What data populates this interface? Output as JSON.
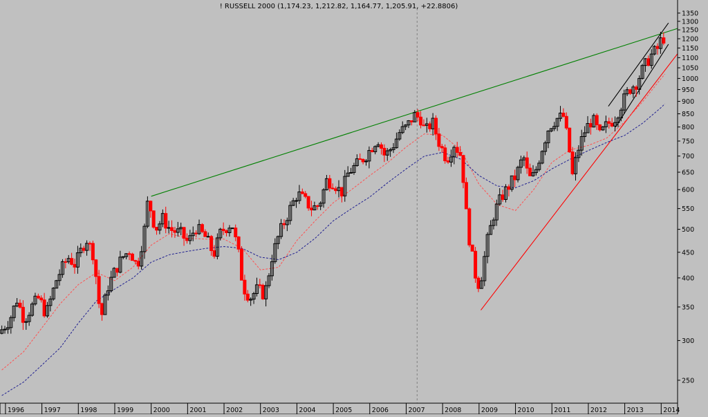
{
  "chart_data": {
    "type": "candlestick",
    "title": "! RUSSELL 2000 (1,174.23, 1,212.82, 1,164.77, 1,205.91, +22.8806)",
    "scale": "log",
    "ylim": [
      225,
      1380
    ],
    "xlim": [
      1995.85,
      2014.45
    ],
    "grid": false,
    "y_ticks": [
      1350,
      1300,
      1250,
      1200,
      1150,
      1100,
      1050,
      1000,
      950,
      900,
      850,
      800,
      750,
      700,
      650,
      600,
      550,
      500,
      450,
      400,
      350,
      300,
      250
    ],
    "x_ticks": [
      {
        "label": "1996",
        "x": 1996.0
      },
      {
        "label": "1997",
        "x": 1997.0
      },
      {
        "label": "1998",
        "x": 1998.0
      },
      {
        "label": "1999",
        "x": 1999.0
      },
      {
        "label": "2000",
        "x": 2000.0
      },
      {
        "label": "2001",
        "x": 2001.0
      },
      {
        "label": "2002",
        "x": 2002.0
      },
      {
        "label": "2003",
        "x": 2003.0
      },
      {
        "label": "2004",
        "x": 2004.0
      },
      {
        "label": "2005",
        "x": 2005.0
      },
      {
        "label": "2006",
        "x": 2006.0
      },
      {
        "label": "2007",
        "x": 2007.0
      },
      {
        "label": "2008",
        "x": 2008.0
      },
      {
        "label": "2009",
        "x": 2009.0
      },
      {
        "label": "2010",
        "x": 2010.0
      },
      {
        "label": "2011",
        "x": 2011.0
      },
      {
        "label": "2012",
        "x": 2012.0
      },
      {
        "label": "2013",
        "x": 2013.0
      },
      {
        "label": "2014",
        "x": 2014.0
      }
    ],
    "series": [
      {
        "kind": "price",
        "color_up": "#000000",
        "color_down": "#ff0000",
        "points": [
          [
            1995.9,
            310
          ],
          [
            1996.2,
            330
          ],
          [
            1996.4,
            362
          ],
          [
            1996.6,
            330
          ],
          [
            1996.8,
            350
          ],
          [
            1997.0,
            365
          ],
          [
            1997.2,
            338
          ],
          [
            1997.5,
            400
          ],
          [
            1997.8,
            440
          ],
          [
            1998.0,
            425
          ],
          [
            1998.3,
            480
          ],
          [
            1998.5,
            445
          ],
          [
            1998.6,
            385
          ],
          [
            1998.7,
            330
          ],
          [
            1998.9,
            385
          ],
          [
            1999.1,
            415
          ],
          [
            1999.3,
            440
          ],
          [
            1999.5,
            455
          ],
          [
            1999.7,
            420
          ],
          [
            1999.9,
            500
          ],
          [
            2000.0,
            575
          ],
          [
            2000.2,
            500
          ],
          [
            2000.4,
            525
          ],
          [
            2000.6,
            500
          ],
          [
            2000.9,
            490
          ],
          [
            2001.1,
            470
          ],
          [
            2001.3,
            505
          ],
          [
            2001.6,
            480
          ],
          [
            2001.8,
            445
          ],
          [
            2002.0,
            495
          ],
          [
            2002.3,
            515
          ],
          [
            2002.5,
            440
          ],
          [
            2002.6,
            385
          ],
          [
            2002.8,
            365
          ],
          [
            2003.0,
            380
          ],
          [
            2003.2,
            370
          ],
          [
            2003.4,
            440
          ],
          [
            2003.6,
            490
          ],
          [
            2003.9,
            550
          ],
          [
            2004.1,
            590
          ],
          [
            2004.3,
            570
          ],
          [
            2004.5,
            550
          ],
          [
            2004.7,
            560
          ],
          [
            2004.9,
            625
          ],
          [
            2005.1,
            620
          ],
          [
            2005.3,
            590
          ],
          [
            2005.5,
            650
          ],
          [
            2005.8,
            680
          ],
          [
            2006.0,
            705
          ],
          [
            2006.3,
            760
          ],
          [
            2006.5,
            700
          ],
          [
            2006.7,
            730
          ],
          [
            2006.9,
            780
          ],
          [
            2007.1,
            800
          ],
          [
            2007.3,
            845
          ],
          [
            2007.5,
            830
          ],
          [
            2007.6,
            780
          ],
          [
            2007.8,
            820
          ],
          [
            2008.0,
            740
          ],
          [
            2008.2,
            690
          ],
          [
            2008.4,
            740
          ],
          [
            2008.6,
            700
          ],
          [
            2008.75,
            520
          ],
          [
            2008.85,
            460
          ],
          [
            2009.0,
            400
          ],
          [
            2009.1,
            385
          ],
          [
            2009.3,
            470
          ],
          [
            2009.5,
            540
          ],
          [
            2009.7,
            580
          ],
          [
            2009.9,
            610
          ],
          [
            2010.1,
            640
          ],
          [
            2010.3,
            700
          ],
          [
            2010.45,
            630
          ],
          [
            2010.6,
            640
          ],
          [
            2010.8,
            720
          ],
          [
            2011.0,
            800
          ],
          [
            2011.2,
            830
          ],
          [
            2011.4,
            840
          ],
          [
            2011.55,
            730
          ],
          [
            2011.65,
            640
          ],
          [
            2011.8,
            720
          ],
          [
            2012.0,
            790
          ],
          [
            2012.2,
            830
          ],
          [
            2012.4,
            770
          ],
          [
            2012.6,
            810
          ],
          [
            2012.8,
            830
          ],
          [
            2013.0,
            890
          ],
          [
            2013.2,
            950
          ],
          [
            2013.4,
            980
          ],
          [
            2013.6,
            1050
          ],
          [
            2013.8,
            1110
          ],
          [
            2014.0,
            1150
          ],
          [
            2014.1,
            1205
          ]
        ]
      },
      {
        "kind": "moving-average",
        "color": "#ff5050",
        "style": "dashed",
        "points": [
          [
            1995.9,
            262
          ],
          [
            1996.5,
            285
          ],
          [
            1997.0,
            318
          ],
          [
            1997.5,
            355
          ],
          [
            1998.0,
            388
          ],
          [
            1998.5,
            410
          ],
          [
            1999.0,
            395
          ],
          [
            1999.5,
            420
          ],
          [
            2000.0,
            465
          ],
          [
            2000.5,
            490
          ],
          [
            2001.0,
            480
          ],
          [
            2001.5,
            478
          ],
          [
            2002.0,
            478
          ],
          [
            2002.5,
            458
          ],
          [
            2003.0,
            415
          ],
          [
            2003.5,
            420
          ],
          [
            2004.0,
            475
          ],
          [
            2004.5,
            520
          ],
          [
            2005.0,
            565
          ],
          [
            2005.5,
            600
          ],
          [
            2006.0,
            640
          ],
          [
            2006.5,
            680
          ],
          [
            2007.0,
            730
          ],
          [
            2007.5,
            775
          ],
          [
            2008.0,
            770
          ],
          [
            2008.5,
            720
          ],
          [
            2009.0,
            615
          ],
          [
            2009.5,
            560
          ],
          [
            2010.0,
            545
          ],
          [
            2010.5,
            600
          ],
          [
            2011.0,
            680
          ],
          [
            2011.5,
            720
          ],
          [
            2012.0,
            735
          ],
          [
            2012.5,
            760
          ],
          [
            2013.0,
            820
          ],
          [
            2013.5,
            900
          ],
          [
            2014.0,
            1000
          ],
          [
            2014.1,
            1020
          ]
        ]
      },
      {
        "kind": "moving-average",
        "color": "#202090",
        "style": "dashed",
        "points": [
          [
            1995.9,
            233
          ],
          [
            1996.5,
            248
          ],
          [
            1997.0,
            268
          ],
          [
            1997.5,
            290
          ],
          [
            1998.0,
            325
          ],
          [
            1998.5,
            360
          ],
          [
            1999.0,
            380
          ],
          [
            1999.5,
            400
          ],
          [
            2000.0,
            430
          ],
          [
            2000.5,
            445
          ],
          [
            2001.0,
            452
          ],
          [
            2001.5,
            458
          ],
          [
            2002.0,
            462
          ],
          [
            2002.5,
            458
          ],
          [
            2003.0,
            440
          ],
          [
            2003.5,
            435
          ],
          [
            2004.0,
            450
          ],
          [
            2004.5,
            480
          ],
          [
            2005.0,
            520
          ],
          [
            2005.5,
            550
          ],
          [
            2006.0,
            580
          ],
          [
            2006.5,
            620
          ],
          [
            2007.0,
            660
          ],
          [
            2007.5,
            700
          ],
          [
            2008.0,
            712
          ],
          [
            2008.5,
            690
          ],
          [
            2009.0,
            640
          ],
          [
            2009.5,
            610
          ],
          [
            2010.0,
            605
          ],
          [
            2010.5,
            625
          ],
          [
            2011.0,
            660
          ],
          [
            2011.5,
            690
          ],
          [
            2012.0,
            718
          ],
          [
            2012.5,
            745
          ],
          [
            2013.0,
            770
          ],
          [
            2013.5,
            815
          ],
          [
            2014.0,
            875
          ],
          [
            2014.1,
            890
          ]
        ]
      }
    ],
    "annotations": [
      {
        "kind": "trendline",
        "color": "#008000",
        "from": [
          2000.0,
          582
        ],
        "to": [
          2014.45,
          1258
        ]
      },
      {
        "kind": "trendline",
        "color": "#ff0000",
        "from": [
          2009.05,
          345
        ],
        "to": [
          2014.45,
          1120
        ]
      },
      {
        "kind": "trendline",
        "color": "#000000",
        "from": [
          2012.55,
          880
        ],
        "to": [
          2014.2,
          1290
        ]
      },
      {
        "kind": "trendline",
        "color": "#000000",
        "from": [
          2012.75,
          800
        ],
        "to": [
          2014.2,
          1170
        ]
      },
      {
        "kind": "vertical-line",
        "color": "#808080",
        "style": "dashed",
        "x": 2007.3
      }
    ]
  }
}
